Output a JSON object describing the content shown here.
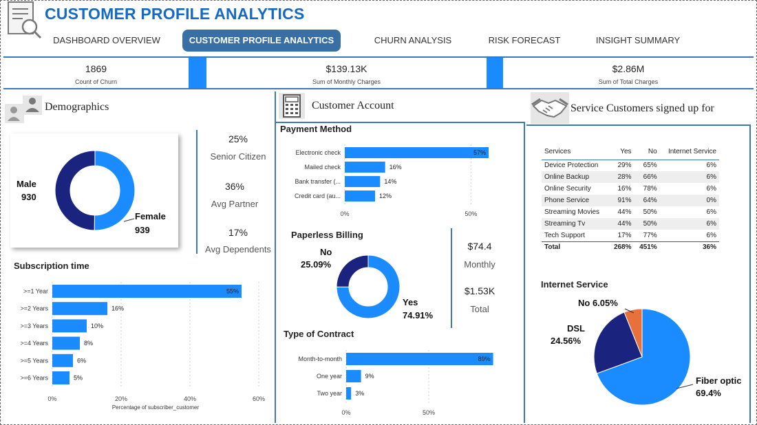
{
  "header": {
    "title": "CUSTOMER PROFILE ANALYTICS",
    "tabs": [
      {
        "label": "DASHBOARD OVERVIEW",
        "active": false
      },
      {
        "label": "CUSTOMER PROFILE ANALYTICS",
        "active": true
      },
      {
        "label": "CHURN ANALYSIS",
        "active": false
      },
      {
        "label": "RISK FORECAST",
        "active": false
      },
      {
        "label": "INSIGHT SUMMARY",
        "active": false
      }
    ]
  },
  "kpis": [
    {
      "value": "1869",
      "label": "Count of Churn"
    },
    {
      "value": "$139.13K",
      "label": "Sum of Monthly Charges"
    },
    {
      "value": "$2.86M",
      "label": "Sum of Total Charges"
    }
  ],
  "demographics": {
    "title": "Demographics",
    "stats": [
      {
        "value": "25%",
        "label": "Senior Citizen"
      },
      {
        "value": "36%",
        "label": "Avg Partner"
      },
      {
        "value": "17%",
        "label": "Avg Dependents"
      }
    ]
  },
  "customer_account": {
    "title": "Customer Account",
    "billing_stats": [
      {
        "value": "$74.4",
        "label": "Monthly"
      },
      {
        "value": "$1.53K",
        "label": "Total"
      }
    ]
  },
  "services": {
    "title": "Service Customers signed up for",
    "columns": [
      "Services",
      "Yes",
      "No",
      "Internet Service"
    ],
    "rows": [
      [
        "Device Protection",
        "29%",
        "65%",
        "6%"
      ],
      [
        "Online Backup",
        "28%",
        "66%",
        "6%"
      ],
      [
        "Online Security",
        "16%",
        "78%",
        "6%"
      ],
      [
        "Phone Service",
        "91%",
        "64%",
        "0%"
      ],
      [
        "Streaming Movies",
        "44%",
        "50%",
        "6%"
      ],
      [
        "Streaming Tv",
        "44%",
        "50%",
        "6%"
      ],
      [
        "Tech Support",
        "17%",
        "77%",
        "6%"
      ]
    ],
    "total": [
      "Total",
      "268%",
      "451%",
      "36%"
    ]
  },
  "colors": {
    "primary": "#1a8cff",
    "dark": "#1a237e",
    "orange": "#e8703a",
    "accent": "#386fa4"
  },
  "chart_data": [
    {
      "id": "gender",
      "type": "pie",
      "donut": true,
      "slices": [
        {
          "label": "Male",
          "value": 930,
          "display": "930"
        },
        {
          "label": "Female",
          "value": 939,
          "display": "939"
        }
      ]
    },
    {
      "id": "subscription",
      "type": "bar",
      "orientation": "horizontal",
      "title": "Subscription time",
      "xlabel": "Percentage of subscriber_customer",
      "categories": [
        ">=1 Year",
        ">=2 Years",
        ">=3 Years",
        ">=4 Years",
        ">=5 Years",
        ">=6 Years"
      ],
      "values": [
        55,
        16,
        10,
        8,
        6,
        5
      ],
      "data_labels": [
        "55%",
        "16%",
        "10%",
        "8%",
        "6%",
        "5%"
      ],
      "xlim": [
        0,
        60
      ],
      "ticks": [
        "0%",
        "20%",
        "40%",
        "60%"
      ],
      "tick_values": [
        0,
        20,
        40,
        60
      ]
    },
    {
      "id": "payment",
      "type": "bar",
      "orientation": "horizontal",
      "title": "Payment Method",
      "categories": [
        "Electronic check",
        "Mailed check",
        "Bank transfer (...",
        "Credit card (au..."
      ],
      "values": [
        57,
        16,
        14,
        12
      ],
      "data_labels": [
        "57%",
        "16%",
        "14%",
        "12%"
      ],
      "xlim": [
        0,
        60
      ],
      "ticks": [
        "0%",
        "50%"
      ],
      "tick_values": [
        0,
        50
      ]
    },
    {
      "id": "paperless",
      "type": "pie",
      "donut": true,
      "title": "Paperless Billing",
      "slices": [
        {
          "label": "No",
          "value": 25.09,
          "display": "25.09%"
        },
        {
          "label": "Yes",
          "value": 74.91,
          "display": "74.91%"
        }
      ]
    },
    {
      "id": "contract",
      "type": "bar",
      "orientation": "horizontal",
      "title": "Type of Contract",
      "categories": [
        "Month-to-month",
        "One year",
        "Two year"
      ],
      "values": [
        89,
        9,
        3
      ],
      "data_labels": [
        "89%",
        "9%",
        "3%"
      ],
      "xlim": [
        0,
        100
      ],
      "ticks": [
        "0%",
        "50%"
      ],
      "tick_values": [
        0,
        50
      ]
    },
    {
      "id": "internet",
      "type": "pie",
      "title": "Internet Service",
      "slices": [
        {
          "label": "Fiber optic",
          "value": 69.4,
          "display": "69.4%"
        },
        {
          "label": "DSL",
          "value": 24.56,
          "display": "24.56%"
        },
        {
          "label": "No",
          "value": 6.05,
          "display": "6.05%"
        }
      ]
    }
  ]
}
